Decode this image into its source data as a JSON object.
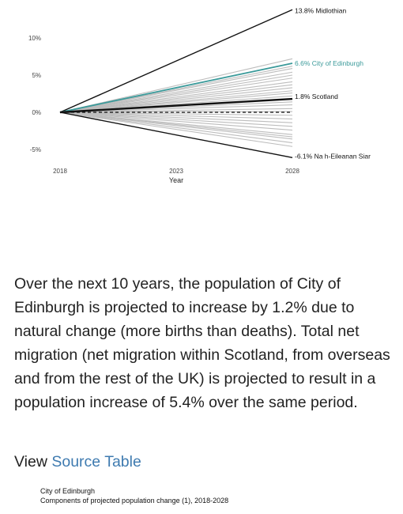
{
  "chart_data": {
    "type": "line",
    "xlabel": "Year",
    "x_ticks": [
      "2018",
      "2023",
      "2028"
    ],
    "y_ticks": [
      "10%",
      "5%",
      "0%",
      "-5%"
    ],
    "x_range": [
      2018,
      2028
    ],
    "y_range": [
      -7,
      14
    ],
    "grid": false,
    "highlighted_series": [
      {
        "name": "Midlothian",
        "label": "13.8% Midlothian",
        "x": [
          2018,
          2028
        ],
        "y": [
          0,
          13.8
        ],
        "color": "#111111"
      },
      {
        "name": "City of Edinburgh",
        "label": "6.6% City of Edinburgh",
        "x": [
          2018,
          2028
        ],
        "y": [
          0,
          6.6
        ],
        "color": "#3b9a9a"
      },
      {
        "name": "Scotland",
        "label": "1.8% Scotland",
        "x": [
          2018,
          2028
        ],
        "y": [
          0,
          1.8
        ],
        "color": "#111111"
      },
      {
        "name": "Na h-Eileanan Siar",
        "label": "-6.1% Na h-Eileanan Siar",
        "x": [
          2018,
          2028
        ],
        "y": [
          0,
          -6.1
        ],
        "color": "#111111"
      }
    ],
    "reference_line": {
      "x": [
        2018,
        2028
      ],
      "y": [
        0,
        0
      ],
      "style": "dashed",
      "color": "#111111"
    },
    "background_series_2028_values": [
      7.2,
      6.2,
      5.9,
      5.4,
      5.0,
      4.6,
      4.1,
      3.7,
      3.3,
      2.9,
      2.6,
      2.2,
      1.4,
      1.0,
      0.5,
      0.1,
      -0.4,
      -0.9,
      -1.4,
      -1.9,
      -2.4,
      -3.0,
      -3.3,
      -3.6,
      -4.1,
      -4.6
    ],
    "background_color": "#bdbdbd"
  },
  "summary_text": "Over the next 10 years, the population of City of Edinburgh is projected to increase by 1.2% due to natural change (more births than deaths). Total net migration (net migration within Scotland, from overseas and from the rest of the UK) is projected to result in a population increase of 5.4% over the same period.",
  "view_source": {
    "prefix": "View ",
    "link_label": "Source Table"
  },
  "source_caption": {
    "line1": "City of Edinburgh",
    "line2": "Components of projected population change (1), 2018-2028"
  }
}
